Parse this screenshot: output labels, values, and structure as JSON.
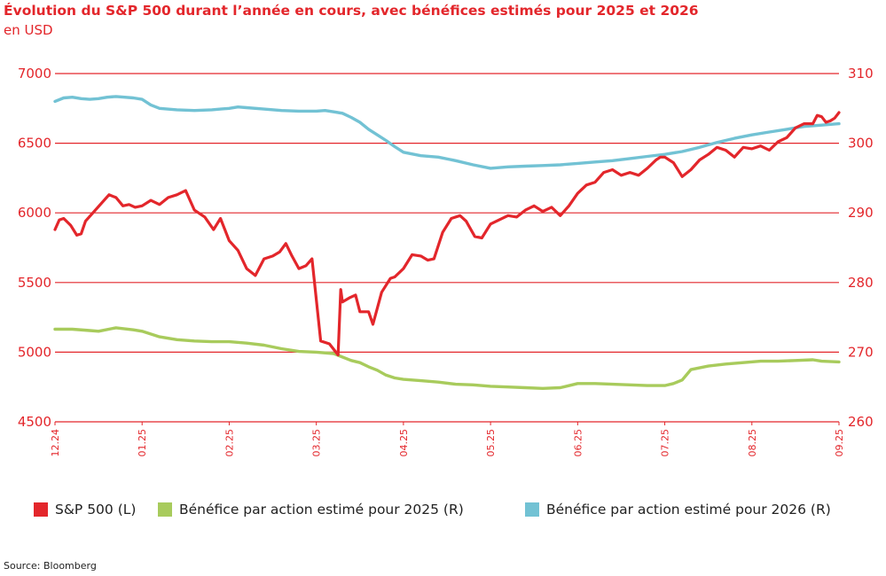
{
  "header": {
    "title": "Évolution du S&P 500 durant l’année en cours, avec bénéfices estimés pour 2025 et 2026",
    "subtitle": "en USD"
  },
  "colors": {
    "sp500": "#e3262b",
    "eps2025": "#a8cb5c",
    "eps2026": "#72c2d4",
    "grid": "#e3262b"
  },
  "legend": [
    {
      "label": "S&P 500 (L)",
      "color": "#e3262b"
    },
    {
      "label": "Bénéfice par action estimé pour 2025 (R)",
      "color": "#a8cb5c"
    },
    {
      "label": "Bénéfice par action estimé pour 2026 (R)",
      "color": "#72c2d4"
    }
  ],
  "source": "Source: Bloomberg",
  "chart_data": {
    "type": "line",
    "title": "Évolution du S&P 500 durant l’année en cours, avec bénéfices estimés pour 2025 et 2026",
    "subtitle": "en USD",
    "x_ticks": [
      "12.24",
      "01.25",
      "02.25",
      "03.25",
      "04.25",
      "05.25",
      "06.25",
      "07.25",
      "08.25",
      "09.25"
    ],
    "x_range": [
      0,
      9
    ],
    "y_left": {
      "range": [
        4500,
        7000
      ],
      "ticks": [
        4500,
        5000,
        5500,
        6000,
        6500,
        7000
      ]
    },
    "y_right": {
      "range": [
        260,
        310
      ],
      "ticks": [
        260,
        270,
        280,
        290,
        300,
        310
      ]
    },
    "grid": "horizontal",
    "legend_position": "bottom",
    "series": [
      {
        "name": "S&P 500 (L)",
        "axis": "left",
        "color": "#e3262b",
        "x": [
          0,
          0.05,
          0.1,
          0.18,
          0.25,
          0.3,
          0.35,
          0.45,
          0.55,
          0.62,
          0.7,
          0.78,
          0.85,
          0.92,
          1.0,
          1.1,
          1.2,
          1.3,
          1.4,
          1.5,
          1.6,
          1.72,
          1.82,
          1.9,
          2.0,
          2.1,
          2.2,
          2.3,
          2.4,
          2.5,
          2.58,
          2.65,
          2.72,
          2.8,
          2.88,
          2.95,
          3.05,
          3.15,
          3.25,
          3.28,
          3.3,
          3.38,
          3.45,
          3.5,
          3.55,
          3.6,
          3.65,
          3.75,
          3.85,
          3.9,
          4.0,
          4.1,
          4.2,
          4.28,
          4.35,
          4.45,
          4.55,
          4.65,
          4.72,
          4.82,
          4.9,
          5.0,
          5.1,
          5.2,
          5.3,
          5.4,
          5.5,
          5.6,
          5.7,
          5.8,
          5.9,
          6.0,
          6.1,
          6.2,
          6.3,
          6.4,
          6.5,
          6.6,
          6.7,
          6.8,
          6.9,
          6.95,
          7.0,
          7.1,
          7.2,
          7.3,
          7.4,
          7.5,
          7.6,
          7.7,
          7.8,
          7.9,
          8.0,
          8.1,
          8.2,
          8.3,
          8.4,
          8.5,
          8.6,
          8.7,
          8.75,
          8.8,
          8.85,
          8.9,
          8.95,
          9.0
        ],
        "values": [
          5880,
          5950,
          5960,
          5910,
          5840,
          5850,
          5940,
          6010,
          6080,
          6130,
          6110,
          6050,
          6060,
          6040,
          6050,
          6090,
          6060,
          6110,
          6130,
          6160,
          6020,
          5970,
          5880,
          5960,
          5800,
          5730,
          5600,
          5550,
          5670,
          5690,
          5720,
          5780,
          5690,
          5600,
          5620,
          5670,
          5080,
          5060,
          4980,
          5450,
          5360,
          5390,
          5410,
          5290,
          5290,
          5290,
          5200,
          5430,
          5530,
          5540,
          5600,
          5700,
          5690,
          5660,
          5670,
          5860,
          5960,
          5980,
          5940,
          5830,
          5820,
          5920,
          5950,
          5980,
          5970,
          6020,
          6050,
          6010,
          6040,
          5980,
          6050,
          6140,
          6200,
          6220,
          6290,
          6310,
          6270,
          6290,
          6270,
          6320,
          6380,
          6400,
          6400,
          6360,
          6260,
          6310,
          6380,
          6420,
          6470,
          6450,
          6400,
          6470,
          6460,
          6480,
          6450,
          6510,
          6540,
          6610,
          6640,
          6640,
          6700,
          6690,
          6650,
          6660,
          6680,
          6720
        ]
      },
      {
        "name": "Bénéfice par action estimé pour 2025 (R)",
        "axis": "right",
        "color": "#a8cb5c",
        "x": [
          0,
          0.2,
          0.4,
          0.5,
          0.7,
          0.9,
          1.0,
          1.2,
          1.4,
          1.6,
          1.8,
          2.0,
          2.2,
          2.4,
          2.6,
          2.8,
          3.0,
          3.2,
          3.4,
          3.5,
          3.6,
          3.7,
          3.8,
          3.9,
          4.0,
          4.2,
          4.4,
          4.6,
          4.8,
          5.0,
          5.2,
          5.4,
          5.6,
          5.8,
          6.0,
          6.2,
          6.4,
          6.6,
          6.8,
          7.0,
          7.1,
          7.2,
          7.3,
          7.5,
          7.7,
          7.9,
          8.1,
          8.3,
          8.5,
          8.7,
          8.8,
          9.0
        ],
        "values": [
          273.3,
          273.3,
          273.1,
          273.0,
          273.5,
          273.2,
          273.0,
          272.2,
          271.8,
          271.6,
          271.5,
          271.5,
          271.3,
          271.0,
          270.5,
          270.1,
          270.0,
          269.8,
          268.8,
          268.5,
          267.9,
          267.4,
          266.7,
          266.3,
          266.1,
          265.9,
          265.7,
          265.4,
          265.3,
          265.1,
          265.0,
          264.9,
          264.8,
          264.9,
          265.5,
          265.5,
          265.4,
          265.3,
          265.2,
          265.2,
          265.5,
          266.0,
          267.5,
          268.0,
          268.3,
          268.5,
          268.7,
          268.7,
          268.8,
          268.9,
          268.7,
          268.6
        ]
      },
      {
        "name": "Bénéfice par action estimé pour 2026 (R)",
        "axis": "right",
        "color": "#72c2d4",
        "x": [
          0,
          0.1,
          0.2,
          0.3,
          0.4,
          0.5,
          0.6,
          0.7,
          0.8,
          0.9,
          1.0,
          1.1,
          1.2,
          1.4,
          1.6,
          1.8,
          1.9,
          2.0,
          2.1,
          2.2,
          2.4,
          2.6,
          2.8,
          3.0,
          3.1,
          3.2,
          3.3,
          3.4,
          3.5,
          3.6,
          3.7,
          3.8,
          3.9,
          4.0,
          4.2,
          4.4,
          4.6,
          4.8,
          5.0,
          5.2,
          5.4,
          5.6,
          5.8,
          6.0,
          6.2,
          6.4,
          6.6,
          6.8,
          7.0,
          7.2,
          7.4,
          7.6,
          7.8,
          8.0,
          8.2,
          8.4,
          8.6,
          8.8,
          9.0
        ],
        "values": [
          306,
          306.5,
          306.6,
          306.4,
          306.3,
          306.4,
          306.6,
          306.7,
          306.6,
          306.5,
          306.3,
          305.5,
          305.0,
          304.8,
          304.7,
          304.8,
          304.9,
          305.0,
          305.2,
          305.1,
          304.9,
          304.7,
          304.6,
          304.6,
          304.7,
          304.5,
          304.3,
          303.7,
          303.0,
          302.0,
          301.2,
          300.4,
          299.5,
          298.7,
          298.2,
          298.0,
          297.5,
          296.9,
          296.4,
          296.6,
          296.7,
          296.8,
          296.9,
          297.1,
          297.3,
          297.5,
          297.8,
          298.1,
          298.4,
          298.8,
          299.4,
          300.1,
          300.7,
          301.2,
          301.6,
          302.0,
          302.4,
          302.6,
          302.8
        ]
      }
    ]
  }
}
